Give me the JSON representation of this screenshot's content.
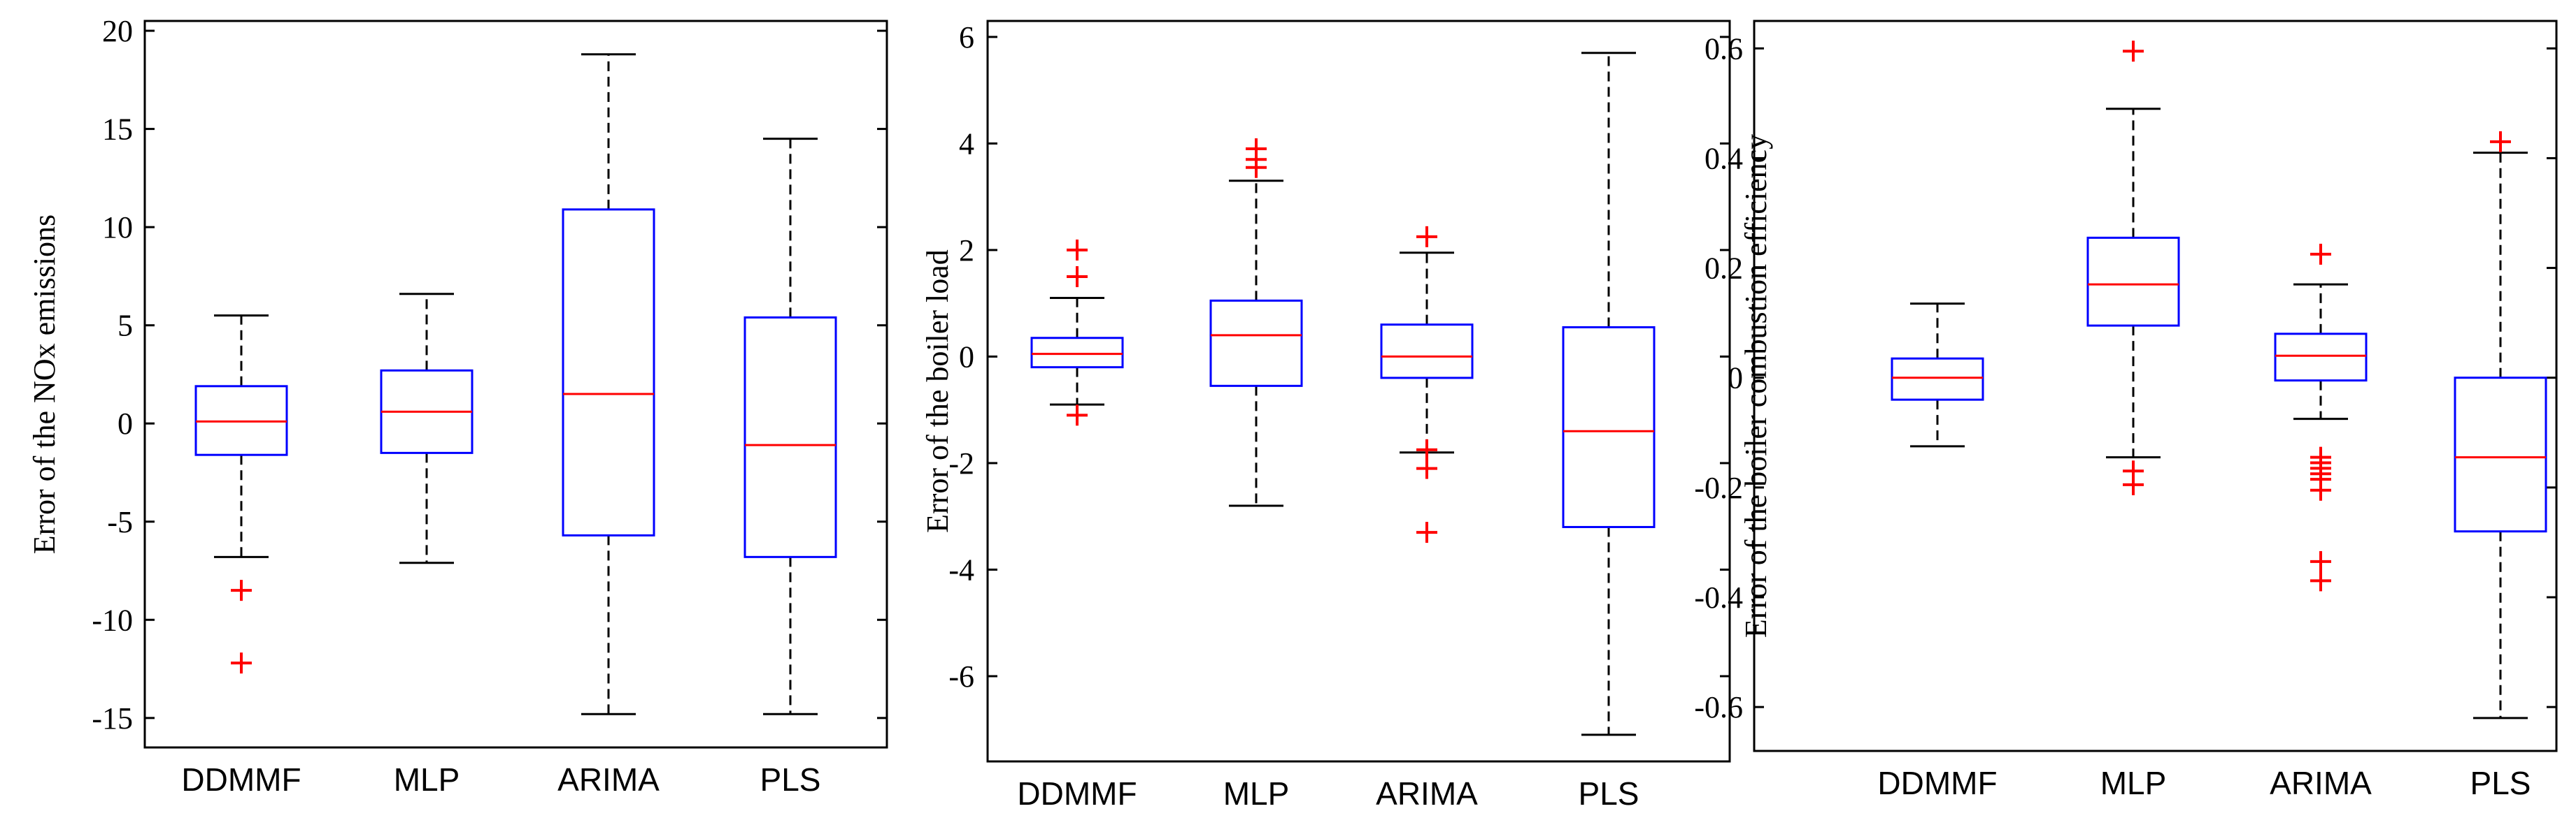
{
  "colors": {
    "box": "#0000ff",
    "median": "#ff0000",
    "outlier": "#ff0000",
    "whisker": "#000000",
    "axis": "#000000"
  },
  "chart_data": [
    {
      "type": "boxplot",
      "ylabel": "Error of the NOx emissions",
      "categories": [
        "DDMMF",
        "MLP",
        "ARIMA",
        "PLS"
      ],
      "ylim": [
        -16.5,
        20.5
      ],
      "yticks": [
        -15,
        -10,
        -5,
        0,
        5,
        10,
        15,
        20
      ],
      "ytick_labels": [
        "-15",
        "-10",
        "-5",
        "0",
        "5",
        "10",
        "15",
        "20"
      ],
      "boxes": [
        {
          "whisker_low": -6.8,
          "q1": -1.6,
          "median": 0.1,
          "q3": 1.9,
          "whisker_high": 5.5,
          "outliers": [
            -8.5,
            -12.2
          ]
        },
        {
          "whisker_low": -7.1,
          "q1": -1.5,
          "median": 0.6,
          "q3": 2.7,
          "whisker_high": 6.6,
          "outliers": []
        },
        {
          "whisker_low": -14.8,
          "q1": -5.7,
          "median": 1.5,
          "q3": 10.9,
          "whisker_high": 18.8,
          "outliers": []
        },
        {
          "whisker_low": -14.8,
          "q1": -6.8,
          "median": -1.1,
          "q3": 5.4,
          "whisker_high": 14.5,
          "outliers": []
        }
      ]
    },
    {
      "type": "boxplot",
      "ylabel": "Error of the boiler load",
      "categories": [
        "DDMMF",
        "MLP",
        "ARIMA",
        "PLS"
      ],
      "ylim": [
        -7.6,
        6.3
      ],
      "yticks": [
        -6,
        -4,
        -2,
        0,
        2,
        4,
        6
      ],
      "ytick_labels": [
        "-6",
        "-4",
        "-2",
        "0",
        "2",
        "4",
        "6"
      ],
      "boxes": [
        {
          "whisker_low": -0.9,
          "q1": -0.2,
          "median": 0.05,
          "q3": 0.35,
          "whisker_high": 1.1,
          "outliers": [
            2.0,
            1.5,
            -1.1
          ]
        },
        {
          "whisker_low": -2.8,
          "q1": -0.55,
          "median": 0.4,
          "q3": 1.05,
          "whisker_high": 3.3,
          "outliers": [
            3.9,
            3.7,
            3.55
          ]
        },
        {
          "whisker_low": -1.8,
          "q1": -0.4,
          "median": 0.0,
          "q3": 0.6,
          "whisker_high": 1.95,
          "outliers": [
            2.25,
            -1.75,
            -2.1,
            -3.3
          ]
        },
        {
          "whisker_low": -7.1,
          "q1": -3.2,
          "median": -1.4,
          "q3": 0.55,
          "whisker_high": 5.7,
          "outliers": []
        }
      ]
    },
    {
      "type": "boxplot",
      "ylabel": "Error of the boiler combustion efficiency",
      "categories": [
        "DDMMF",
        "MLP",
        "ARIMA",
        "PLS"
      ],
      "ylim": [
        -0.68,
        0.65
      ],
      "yticks": [
        -0.6,
        -0.4,
        -0.2,
        0,
        0.2,
        0.4,
        0.6
      ],
      "ytick_labels": [
        "-0.6",
        "-0.4",
        "-0.2",
        "0",
        "0.2",
        "0.4",
        "0.6"
      ],
      "boxes": [
        {
          "whisker_low": -0.125,
          "q1": -0.04,
          "median": 0.0,
          "q3": 0.035,
          "whisker_high": 0.135,
          "outliers": []
        },
        {
          "whisker_low": -0.145,
          "q1": 0.095,
          "median": 0.17,
          "q3": 0.255,
          "whisker_high": 0.49,
          "outliers": [
            0.595,
            -0.17,
            -0.195
          ]
        },
        {
          "whisker_low": -0.075,
          "q1": -0.005,
          "median": 0.04,
          "q3": 0.08,
          "whisker_high": 0.17,
          "outliers": [
            0.225,
            -0.145,
            -0.155,
            -0.165,
            -0.175,
            -0.185,
            -0.205,
            -0.335,
            -0.37
          ]
        },
        {
          "whisker_low": -0.62,
          "q1": -0.28,
          "median": -0.145,
          "q3": 0.0,
          "whisker_high": 0.41,
          "outliers": [
            0.43
          ]
        }
      ]
    }
  ]
}
